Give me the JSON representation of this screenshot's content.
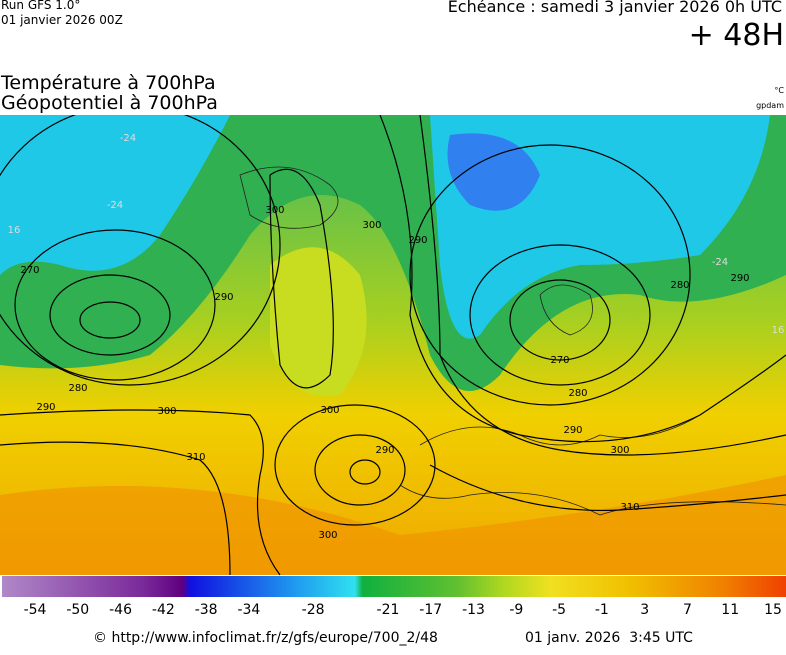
{
  "header": {
    "run": "Run GFS 1.0°",
    "date": "01 janvier 2026 00Z",
    "echeance": "Echéance : samedi 3 janvier 2026 0h UTC",
    "lead": "+ 48H"
  },
  "titles": [
    "Température à 700hPa",
    "Géopotentiel à 700hPa"
  ],
  "units": [
    "°C",
    "gpdam"
  ],
  "contour_labels": [
    "270",
    "280",
    "290",
    "300",
    "310",
    "300",
    "290",
    "300",
    "290",
    "300",
    "300",
    "290",
    "270",
    "280",
    "290",
    "300",
    "310",
    "280",
    "290",
    "-24",
    "-24",
    "-24",
    "16",
    "16"
  ],
  "colorbar": {
    "labels": [
      -54,
      -50,
      -46,
      -42,
      -38,
      -34,
      -28,
      -21,
      -17,
      -13,
      -9,
      -5,
      -1,
      3,
      7,
      11,
      15
    ]
  },
  "footer": {
    "url": "© http://www.infoclimat.fr/z/gfs/europe/700_2/48",
    "time": "01 janv. 2026  3:45 UTC"
  }
}
